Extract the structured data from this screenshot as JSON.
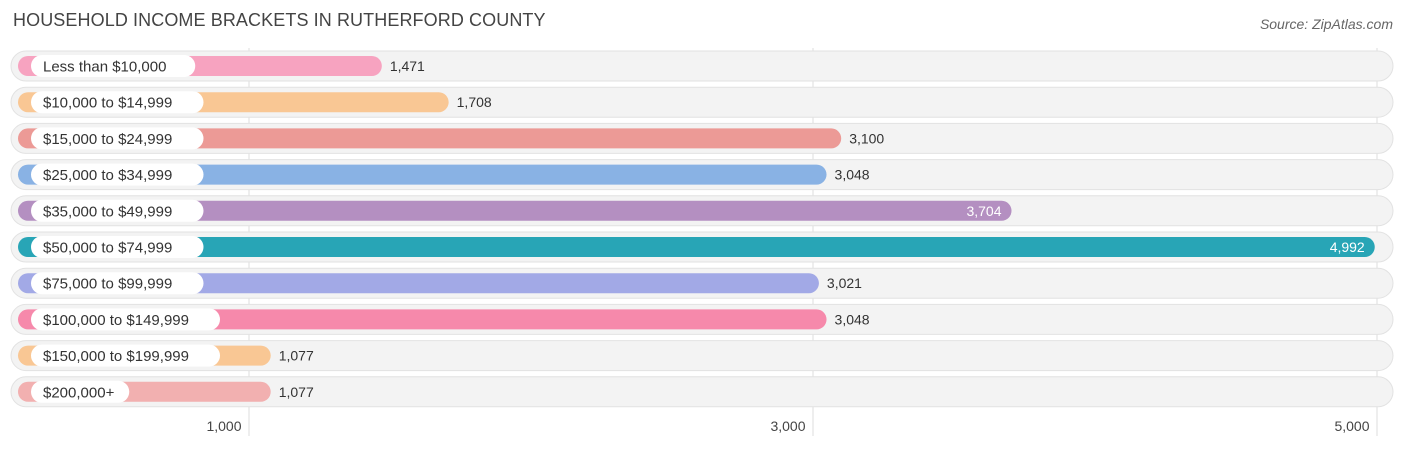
{
  "title": "HOUSEHOLD INCOME BRACKETS IN RUTHERFORD COUNTY",
  "source": "Source: ZipAtlas.com",
  "chart_data": {
    "type": "bar",
    "orientation": "horizontal",
    "title": "HOUSEHOLD INCOME BRACKETS IN RUTHERFORD COUNTY",
    "categories": [
      "Less than $10,000",
      "$10,000 to $14,999",
      "$15,000 to $24,999",
      "$25,000 to $34,999",
      "$35,000 to $49,999",
      "$50,000 to $74,999",
      "$75,000 to $99,999",
      "$100,000 to $149,999",
      "$150,000 to $199,999",
      "$200,000+"
    ],
    "values": [
      1471,
      1708,
      3100,
      3048,
      3704,
      4992,
      3021,
      3048,
      1077,
      1077
    ],
    "value_labels": [
      "1,471",
      "1,708",
      "3,100",
      "3,048",
      "3,704",
      "4,992",
      "3,021",
      "3,048",
      "1,077",
      "1,077"
    ],
    "colors": [
      "#f7a3c0",
      "#f9c794",
      "#ec9a96",
      "#89b2e4",
      "#b48fc1",
      "#28a5b6",
      "#a2a9e6",
      "#f689ab",
      "#f9c794",
      "#f2b0b0"
    ],
    "xticks": [
      1000,
      3000,
      5000
    ],
    "xtick_labels": [
      "1,000",
      "3,000",
      "5,000"
    ],
    "xlim": [
      180,
      5040
    ],
    "grid": true,
    "xlabel": "",
    "ylabel": ""
  }
}
